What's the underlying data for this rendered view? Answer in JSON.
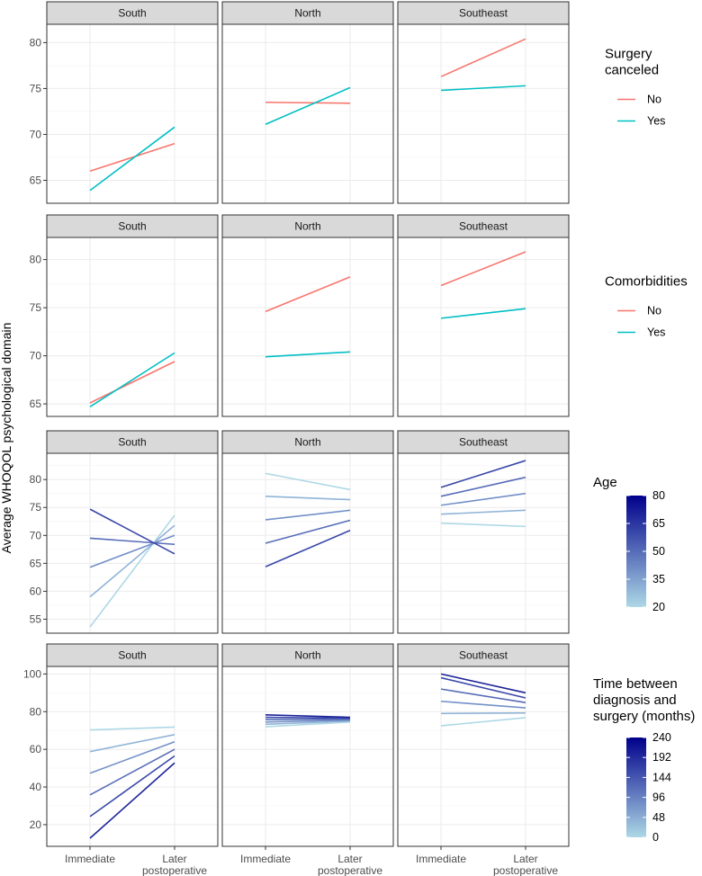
{
  "chart_data": {
    "type": "line",
    "ylabel": "Average WHOQOL psychological domain",
    "x_categories": [
      "Immediate",
      "Later postoperative"
    ],
    "x_tick_labels": [
      [
        "Immediate"
      ],
      [
        "Later",
        "postoperative"
      ]
    ],
    "facets": [
      "South",
      "North",
      "Southeast"
    ],
    "rows": [
      {
        "id": "surgery",
        "legend": {
          "kind": "discrete",
          "title": [
            "Surgery",
            "canceled"
          ]
        },
        "ylim": [
          62.5,
          82
        ],
        "yticks": [
          65,
          70,
          75,
          80
        ],
        "series": [
          {
            "name": "No",
            "color": "#F8766D",
            "values": {
              "South": [
                66.0,
                69.0
              ],
              "North": [
                73.5,
                73.4
              ],
              "Southeast": [
                76.3,
                80.4
              ]
            }
          },
          {
            "name": "Yes",
            "color": "#00BFC4",
            "values": {
              "South": [
                63.9,
                70.8
              ],
              "North": [
                71.1,
                75.1
              ],
              "Southeast": [
                74.8,
                75.3
              ]
            }
          }
        ]
      },
      {
        "id": "comorbidities",
        "legend": {
          "kind": "discrete",
          "title": [
            "Comorbidities"
          ]
        },
        "ylim": [
          63.7,
          82.3
        ],
        "yticks": [
          65,
          70,
          75,
          80
        ],
        "series": [
          {
            "name": "No",
            "color": "#F8766D",
            "values": {
              "South": [
                65.1,
                69.4
              ],
              "North": [
                74.6,
                78.2
              ],
              "Southeast": [
                77.3,
                80.8
              ]
            }
          },
          {
            "name": "Yes",
            "color": "#00BFC4",
            "values": {
              "South": [
                64.7,
                70.3
              ],
              "North": [
                69.9,
                70.4
              ],
              "Southeast": [
                73.9,
                74.9
              ]
            }
          }
        ]
      },
      {
        "id": "age",
        "legend": {
          "kind": "gradient",
          "title": [
            "Age"
          ],
          "min": 20,
          "max": 80,
          "breaks": [
            "20",
            "35",
            "50",
            "65",
            "80"
          ],
          "low_color": "#ADD8E6",
          "high_color": "#00008B"
        },
        "ylim": [
          52.5,
          84.7
        ],
        "yticks": [
          55,
          60,
          65,
          70,
          75,
          80
        ],
        "series": [
          {
            "name": "20",
            "level": 20,
            "values": {
              "South": [
                53.6,
                73.6
              ],
              "North": [
                81.1,
                78.2
              ],
              "Southeast": [
                72.2,
                71.6
              ]
            }
          },
          {
            "name": "30",
            "level": 30,
            "values": {
              "South": [
                59.0,
                71.8
              ],
              "North": [
                77.0,
                76.4
              ],
              "Southeast": [
                73.8,
                74.5
              ]
            }
          },
          {
            "name": "40",
            "level": 40,
            "values": {
              "South": [
                64.3,
                70.0
              ],
              "North": [
                72.8,
                74.5
              ],
              "Southeast": [
                75.4,
                77.5
              ]
            }
          },
          {
            "name": "50",
            "level": 50,
            "values": {
              "South": [
                69.5,
                68.4
              ],
              "North": [
                68.6,
                72.7
              ],
              "Southeast": [
                77.0,
                80.4
              ]
            }
          },
          {
            "name": "60",
            "level": 60,
            "values": {
              "South": [
                74.7,
                66.7
              ],
              "North": [
                64.4,
                70.9
              ],
              "Southeast": [
                78.6,
                83.4
              ]
            }
          }
        ]
      },
      {
        "id": "time",
        "legend": {
          "kind": "gradient",
          "title": [
            "Time between",
            "diagnosis and",
            "surgery (months)"
          ],
          "min": 0,
          "max": 240,
          "breaks": [
            "0",
            "48",
            "96",
            "144",
            "192",
            "240"
          ],
          "low_color": "#ADD8E6",
          "high_color": "#00008B"
        },
        "ylim": [
          8.5,
          104
        ],
        "yticks": [
          20,
          40,
          60,
          80,
          100
        ],
        "series": [
          {
            "name": "0",
            "level": 0,
            "values": {
              "South": [
                70.3,
                71.8
              ],
              "North": [
                72.0,
                74.5
              ],
              "Southeast": [
                72.5,
                76.8
              ]
            }
          },
          {
            "name": "40",
            "level": 40,
            "values": {
              "South": [
                58.8,
                67.8
              ],
              "North": [
                73.3,
                75.0
              ],
              "Southeast": [
                79.0,
                79.3
              ]
            }
          },
          {
            "name": "80",
            "level": 80,
            "values": {
              "South": [
                47.3,
                64.0
              ],
              "North": [
                74.5,
                75.5
              ],
              "Southeast": [
                85.5,
                82.0
              ]
            }
          },
          {
            "name": "120",
            "level": 120,
            "values": {
              "South": [
                35.8,
                60.0
              ],
              "North": [
                75.8,
                76.0
              ],
              "Southeast": [
                92.0,
                84.8
              ]
            }
          },
          {
            "name": "160",
            "level": 160,
            "values": {
              "South": [
                24.3,
                56.5
              ],
              "North": [
                77.0,
                76.5
              ],
              "Southeast": [
                98.0,
                87.3
              ]
            }
          },
          {
            "name": "200",
            "level": 200,
            "values": {
              "South": [
                12.8,
                52.8
              ],
              "North": [
                78.3,
                77.0
              ],
              "Southeast": [
                100.0,
                90.0
              ]
            }
          }
        ]
      }
    ]
  }
}
